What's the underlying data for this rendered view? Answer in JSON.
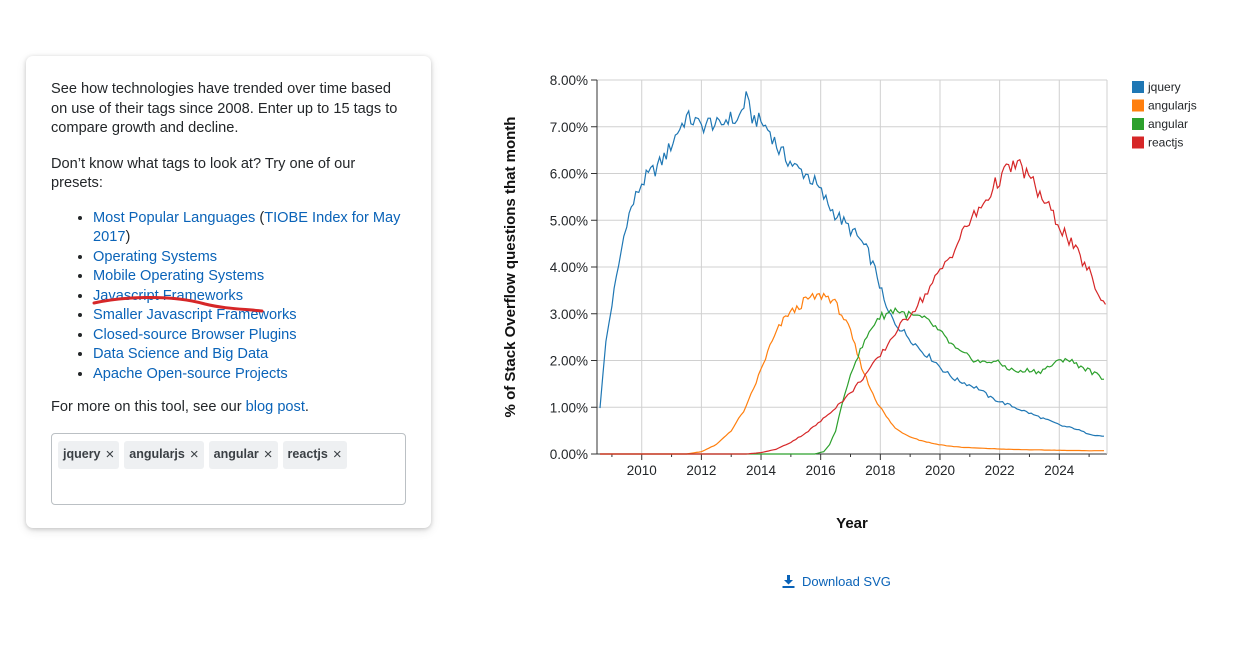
{
  "panel": {
    "intro": "See how technologies have trended over time based on use of their tags since 2008. Enter up to 15 tags to compare growth and decline.",
    "presets_prompt": "Don’t know what tags to look at? Try one of our presets:",
    "presets": [
      {
        "label": "Most Popular Languages",
        "suffix_open": " (",
        "extra": "TIOBE Index for May 2017",
        "suffix_close": ")"
      },
      {
        "label": "Operating Systems"
      },
      {
        "label": "Mobile Operating Systems"
      },
      {
        "label": "Javascript Frameworks"
      },
      {
        "label": "Smaller Javascript Frameworks"
      },
      {
        "label": "Closed-source Browser Plugins"
      },
      {
        "label": "Data Science and Big Data"
      },
      {
        "label": "Apache Open-source Projects"
      }
    ],
    "more_prefix": "For more on this tool, see our ",
    "more_link": "blog post",
    "more_suffix": ".",
    "tags": [
      "jquery",
      "angularjs",
      "angular",
      "reactjs"
    ],
    "remove_glyph": "×",
    "annotation_color": "#d62728"
  },
  "download": {
    "label": "Download SVG",
    "icon": "download-icon"
  },
  "chart_data": {
    "type": "line",
    "xlabel": "Year",
    "ylabel": "% of Stack Overflow questions that month",
    "xlim": [
      2008.5,
      2025.6
    ],
    "ylim": [
      0,
      8
    ],
    "xticks": [
      2010,
      2012,
      2014,
      2016,
      2018,
      2020,
      2022,
      2024
    ],
    "yticks": [
      "0.00%",
      "1.00%",
      "2.00%",
      "3.00%",
      "4.00%",
      "5.00%",
      "6.00%",
      "7.00%",
      "8.00%"
    ],
    "grid": true,
    "legend": "top-right",
    "series": [
      {
        "name": "jquery",
        "color": "#1f77b4",
        "points": [
          [
            2008.6,
            1.0
          ],
          [
            2008.8,
            2.4
          ],
          [
            2009.0,
            3.2
          ],
          [
            2009.3,
            4.3
          ],
          [
            2009.5,
            5.0
          ],
          [
            2009.8,
            5.5
          ],
          [
            2010.0,
            5.8
          ],
          [
            2010.3,
            6.0
          ],
          [
            2010.6,
            6.2
          ],
          [
            2010.9,
            6.5
          ],
          [
            2011.2,
            6.9
          ],
          [
            2011.5,
            7.2
          ],
          [
            2011.8,
            7.1
          ],
          [
            2012.0,
            7.0
          ],
          [
            2012.3,
            7.1
          ],
          [
            2012.6,
            7.0
          ],
          [
            2012.9,
            7.2
          ],
          [
            2013.2,
            7.1
          ],
          [
            2013.5,
            7.6
          ],
          [
            2013.7,
            7.2
          ],
          [
            2014.0,
            7.1
          ],
          [
            2014.3,
            6.9
          ],
          [
            2014.6,
            6.5
          ],
          [
            2014.9,
            6.3
          ],
          [
            2015.2,
            6.1
          ],
          [
            2015.5,
            6.0
          ],
          [
            2015.8,
            5.8
          ],
          [
            2016.1,
            5.5
          ],
          [
            2016.4,
            5.2
          ],
          [
            2016.7,
            5.0
          ],
          [
            2017.0,
            4.8
          ],
          [
            2017.3,
            4.6
          ],
          [
            2017.6,
            4.3
          ],
          [
            2017.9,
            3.8
          ],
          [
            2018.2,
            3.1
          ],
          [
            2018.5,
            2.8
          ],
          [
            2018.8,
            2.6
          ],
          [
            2019.1,
            2.4
          ],
          [
            2019.4,
            2.2
          ],
          [
            2019.8,
            2.0
          ],
          [
            2020.1,
            1.8
          ],
          [
            2020.5,
            1.6
          ],
          [
            2020.9,
            1.5
          ],
          [
            2021.3,
            1.4
          ],
          [
            2021.7,
            1.2
          ],
          [
            2022.1,
            1.1
          ],
          [
            2022.5,
            1.0
          ],
          [
            2022.9,
            0.9
          ],
          [
            2023.3,
            0.8
          ],
          [
            2023.7,
            0.7
          ],
          [
            2024.1,
            0.6
          ],
          [
            2024.5,
            0.55
          ],
          [
            2024.9,
            0.45
          ],
          [
            2025.2,
            0.4
          ],
          [
            2025.5,
            0.38
          ]
        ]
      },
      {
        "name": "angularjs",
        "color": "#ff7f0e",
        "points": [
          [
            2008.6,
            0.0
          ],
          [
            2011.5,
            0.0
          ],
          [
            2012.0,
            0.05
          ],
          [
            2012.5,
            0.2
          ],
          [
            2013.0,
            0.5
          ],
          [
            2013.5,
            1.0
          ],
          [
            2014.0,
            1.8
          ],
          [
            2014.3,
            2.3
          ],
          [
            2014.6,
            2.7
          ],
          [
            2014.9,
            3.0
          ],
          [
            2015.2,
            3.1
          ],
          [
            2015.5,
            3.3
          ],
          [
            2015.8,
            3.35
          ],
          [
            2016.1,
            3.4
          ],
          [
            2016.4,
            3.3
          ],
          [
            2016.7,
            3.0
          ],
          [
            2017.0,
            2.6
          ],
          [
            2017.3,
            2.0
          ],
          [
            2017.6,
            1.5
          ],
          [
            2017.9,
            1.1
          ],
          [
            2018.2,
            0.8
          ],
          [
            2018.5,
            0.55
          ],
          [
            2018.9,
            0.4
          ],
          [
            2019.3,
            0.3
          ],
          [
            2019.8,
            0.22
          ],
          [
            2020.3,
            0.17
          ],
          [
            2020.8,
            0.14
          ],
          [
            2021.5,
            0.12
          ],
          [
            2022.3,
            0.1
          ],
          [
            2023.0,
            0.09
          ],
          [
            2024.0,
            0.08
          ],
          [
            2025.0,
            0.07
          ],
          [
            2025.5,
            0.07
          ]
        ]
      },
      {
        "name": "angular",
        "color": "#2ca02c",
        "points": [
          [
            2008.6,
            0.0
          ],
          [
            2015.8,
            0.0
          ],
          [
            2016.1,
            0.05
          ],
          [
            2016.3,
            0.2
          ],
          [
            2016.5,
            0.5
          ],
          [
            2016.7,
            1.0
          ],
          [
            2016.9,
            1.5
          ],
          [
            2017.1,
            1.9
          ],
          [
            2017.4,
            2.3
          ],
          [
            2017.7,
            2.7
          ],
          [
            2017.9,
            2.9
          ],
          [
            2018.2,
            3.0
          ],
          [
            2018.5,
            3.1
          ],
          [
            2018.8,
            3.0
          ],
          [
            2019.1,
            2.95
          ],
          [
            2019.4,
            2.9
          ],
          [
            2019.7,
            2.8
          ],
          [
            2020.0,
            2.6
          ],
          [
            2020.3,
            2.4
          ],
          [
            2020.6,
            2.2
          ],
          [
            2020.9,
            2.1
          ],
          [
            2021.2,
            2.0
          ],
          [
            2021.5,
            1.95
          ],
          [
            2021.8,
            2.0
          ],
          [
            2022.1,
            1.9
          ],
          [
            2022.4,
            1.8
          ],
          [
            2022.7,
            1.75
          ],
          [
            2023.0,
            1.8
          ],
          [
            2023.3,
            1.75
          ],
          [
            2023.6,
            1.85
          ],
          [
            2023.9,
            1.95
          ],
          [
            2024.2,
            2.05
          ],
          [
            2024.5,
            1.95
          ],
          [
            2024.8,
            1.85
          ],
          [
            2025.1,
            1.75
          ],
          [
            2025.5,
            1.6
          ]
        ]
      },
      {
        "name": "reactjs",
        "color": "#d62728",
        "points": [
          [
            2008.6,
            0.0
          ],
          [
            2013.5,
            0.0
          ],
          [
            2014.0,
            0.03
          ],
          [
            2014.5,
            0.1
          ],
          [
            2015.0,
            0.25
          ],
          [
            2015.5,
            0.45
          ],
          [
            2016.0,
            0.7
          ],
          [
            2016.5,
            1.0
          ],
          [
            2017.0,
            1.3
          ],
          [
            2017.5,
            1.7
          ],
          [
            2018.0,
            2.1
          ],
          [
            2018.5,
            2.6
          ],
          [
            2019.0,
            3.0
          ],
          [
            2019.5,
            3.4
          ],
          [
            2020.0,
            3.9
          ],
          [
            2020.5,
            4.4
          ],
          [
            2020.9,
            4.9
          ],
          [
            2021.3,
            5.2
          ],
          [
            2021.7,
            5.6
          ],
          [
            2022.0,
            5.9
          ],
          [
            2022.3,
            6.1
          ],
          [
            2022.6,
            6.2
          ],
          [
            2022.9,
            6.0
          ],
          [
            2023.2,
            5.7
          ],
          [
            2023.5,
            5.4
          ],
          [
            2023.8,
            5.1
          ],
          [
            2024.1,
            4.8
          ],
          [
            2024.4,
            4.5
          ],
          [
            2024.7,
            4.2
          ],
          [
            2025.0,
            3.9
          ],
          [
            2025.2,
            3.6
          ],
          [
            2025.4,
            3.3
          ],
          [
            2025.55,
            3.2
          ]
        ]
      }
    ]
  }
}
